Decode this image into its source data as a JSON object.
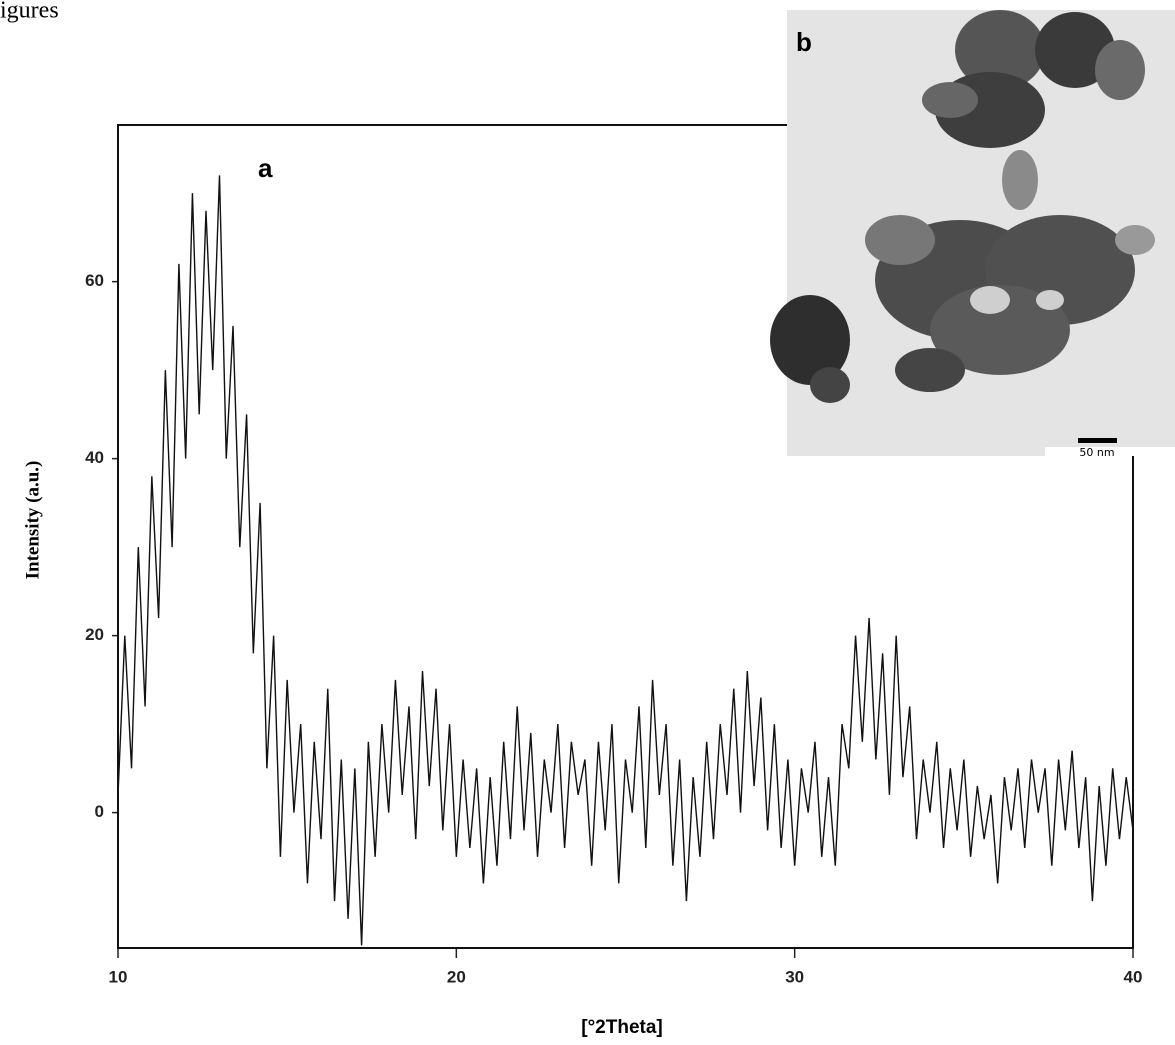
{
  "caption": "igures",
  "chart_data": {
    "type": "line",
    "panel_label": "a",
    "ylabel": "Intensity (a.u.)",
    "xlabel": "[°2Theta]",
    "x": [
      10,
      10.2,
      10.4,
      10.6,
      10.8,
      11,
      11.2,
      11.4,
      11.6,
      11.8,
      12,
      12.2,
      12.4,
      12.6,
      12.8,
      13,
      13.2,
      13.4,
      13.6,
      13.8,
      14,
      14.2,
      14.4,
      14.6,
      14.8,
      15,
      15.2,
      15.4,
      15.6,
      15.8,
      16,
      16.2,
      16.4,
      16.6,
      16.8,
      17,
      17.2,
      17.4,
      17.6,
      17.8,
      18,
      18.2,
      18.4,
      18.6,
      18.8,
      19,
      19.2,
      19.4,
      19.6,
      19.8,
      20,
      20.2,
      20.4,
      20.6,
      20.8,
      21,
      21.2,
      21.4,
      21.6,
      21.8,
      22,
      22.2,
      22.4,
      22.6,
      22.8,
      23,
      23.2,
      23.4,
      23.6,
      23.8,
      24,
      24.2,
      24.4,
      24.6,
      24.8,
      25,
      25.2,
      25.4,
      25.6,
      25.8,
      26,
      26.2,
      26.4,
      26.6,
      26.8,
      27,
      27.2,
      27.4,
      27.6,
      27.8,
      28,
      28.2,
      28.4,
      28.6,
      28.8,
      29,
      29.2,
      29.4,
      29.6,
      29.8,
      30,
      30.2,
      30.4,
      30.6,
      30.8,
      31,
      31.2,
      31.4,
      31.6,
      31.8,
      32,
      32.2,
      32.4,
      32.6,
      32.8,
      33,
      33.2,
      33.4,
      33.6,
      33.8,
      34,
      34.2,
      34.4,
      34.6,
      34.8,
      35,
      35.2,
      35.4,
      35.6,
      35.8,
      36,
      36.2,
      36.4,
      36.6,
      36.8,
      37,
      37.2,
      37.4,
      37.6,
      37.8,
      38,
      38.2,
      38.4,
      38.6,
      38.8,
      39,
      39.2,
      39.4,
      39.6,
      39.8,
      40
    ],
    "series": [
      {
        "color": "#111111",
        "values": [
          2,
          20,
          5,
          30,
          12,
          38,
          22,
          50,
          30,
          62,
          40,
          70,
          45,
          68,
          50,
          72,
          40,
          55,
          30,
          45,
          18,
          35,
          5,
          20,
          -5,
          15,
          0,
          10,
          -8,
          8,
          -3,
          14,
          -10,
          6,
          -12,
          5,
          -15,
          8,
          -5,
          10,
          0,
          15,
          2,
          12,
          -3,
          16,
          3,
          14,
          -2,
          10,
          -5,
          6,
          -4,
          5,
          -8,
          4,
          -6,
          8,
          -3,
          12,
          -2,
          9,
          -5,
          6,
          0,
          10,
          -4,
          8,
          2,
          6,
          -6,
          8,
          -2,
          10,
          -8,
          6,
          0,
          12,
          -4,
          15,
          2,
          10,
          -6,
          6,
          -10,
          4,
          -5,
          8,
          -3,
          10,
          2,
          14,
          0,
          16,
          3,
          13,
          -2,
          10,
          -4,
          6,
          -6,
          5,
          0,
          8,
          -5,
          4,
          -6,
          10,
          5,
          20,
          8,
          22,
          6,
          18,
          2,
          20,
          4,
          12,
          -3,
          6,
          0,
          8,
          -4,
          5,
          -2,
          6,
          -5,
          3,
          -3,
          2,
          -8,
          4,
          -2,
          5,
          -4,
          6,
          0,
          5,
          -6,
          6,
          -2,
          7,
          -4,
          4,
          -10,
          3,
          -6,
          5,
          -3,
          4,
          -2
        ]
      }
    ],
    "xlim": [
      10,
      40
    ],
    "xticks": [
      10,
      20,
      30,
      40
    ],
    "ylim": [
      -15.3,
      77.7
    ],
    "yticks": [
      0,
      20,
      40,
      60
    ]
  },
  "inset": {
    "panel_label": "b",
    "scale_bar": "50 nm"
  }
}
